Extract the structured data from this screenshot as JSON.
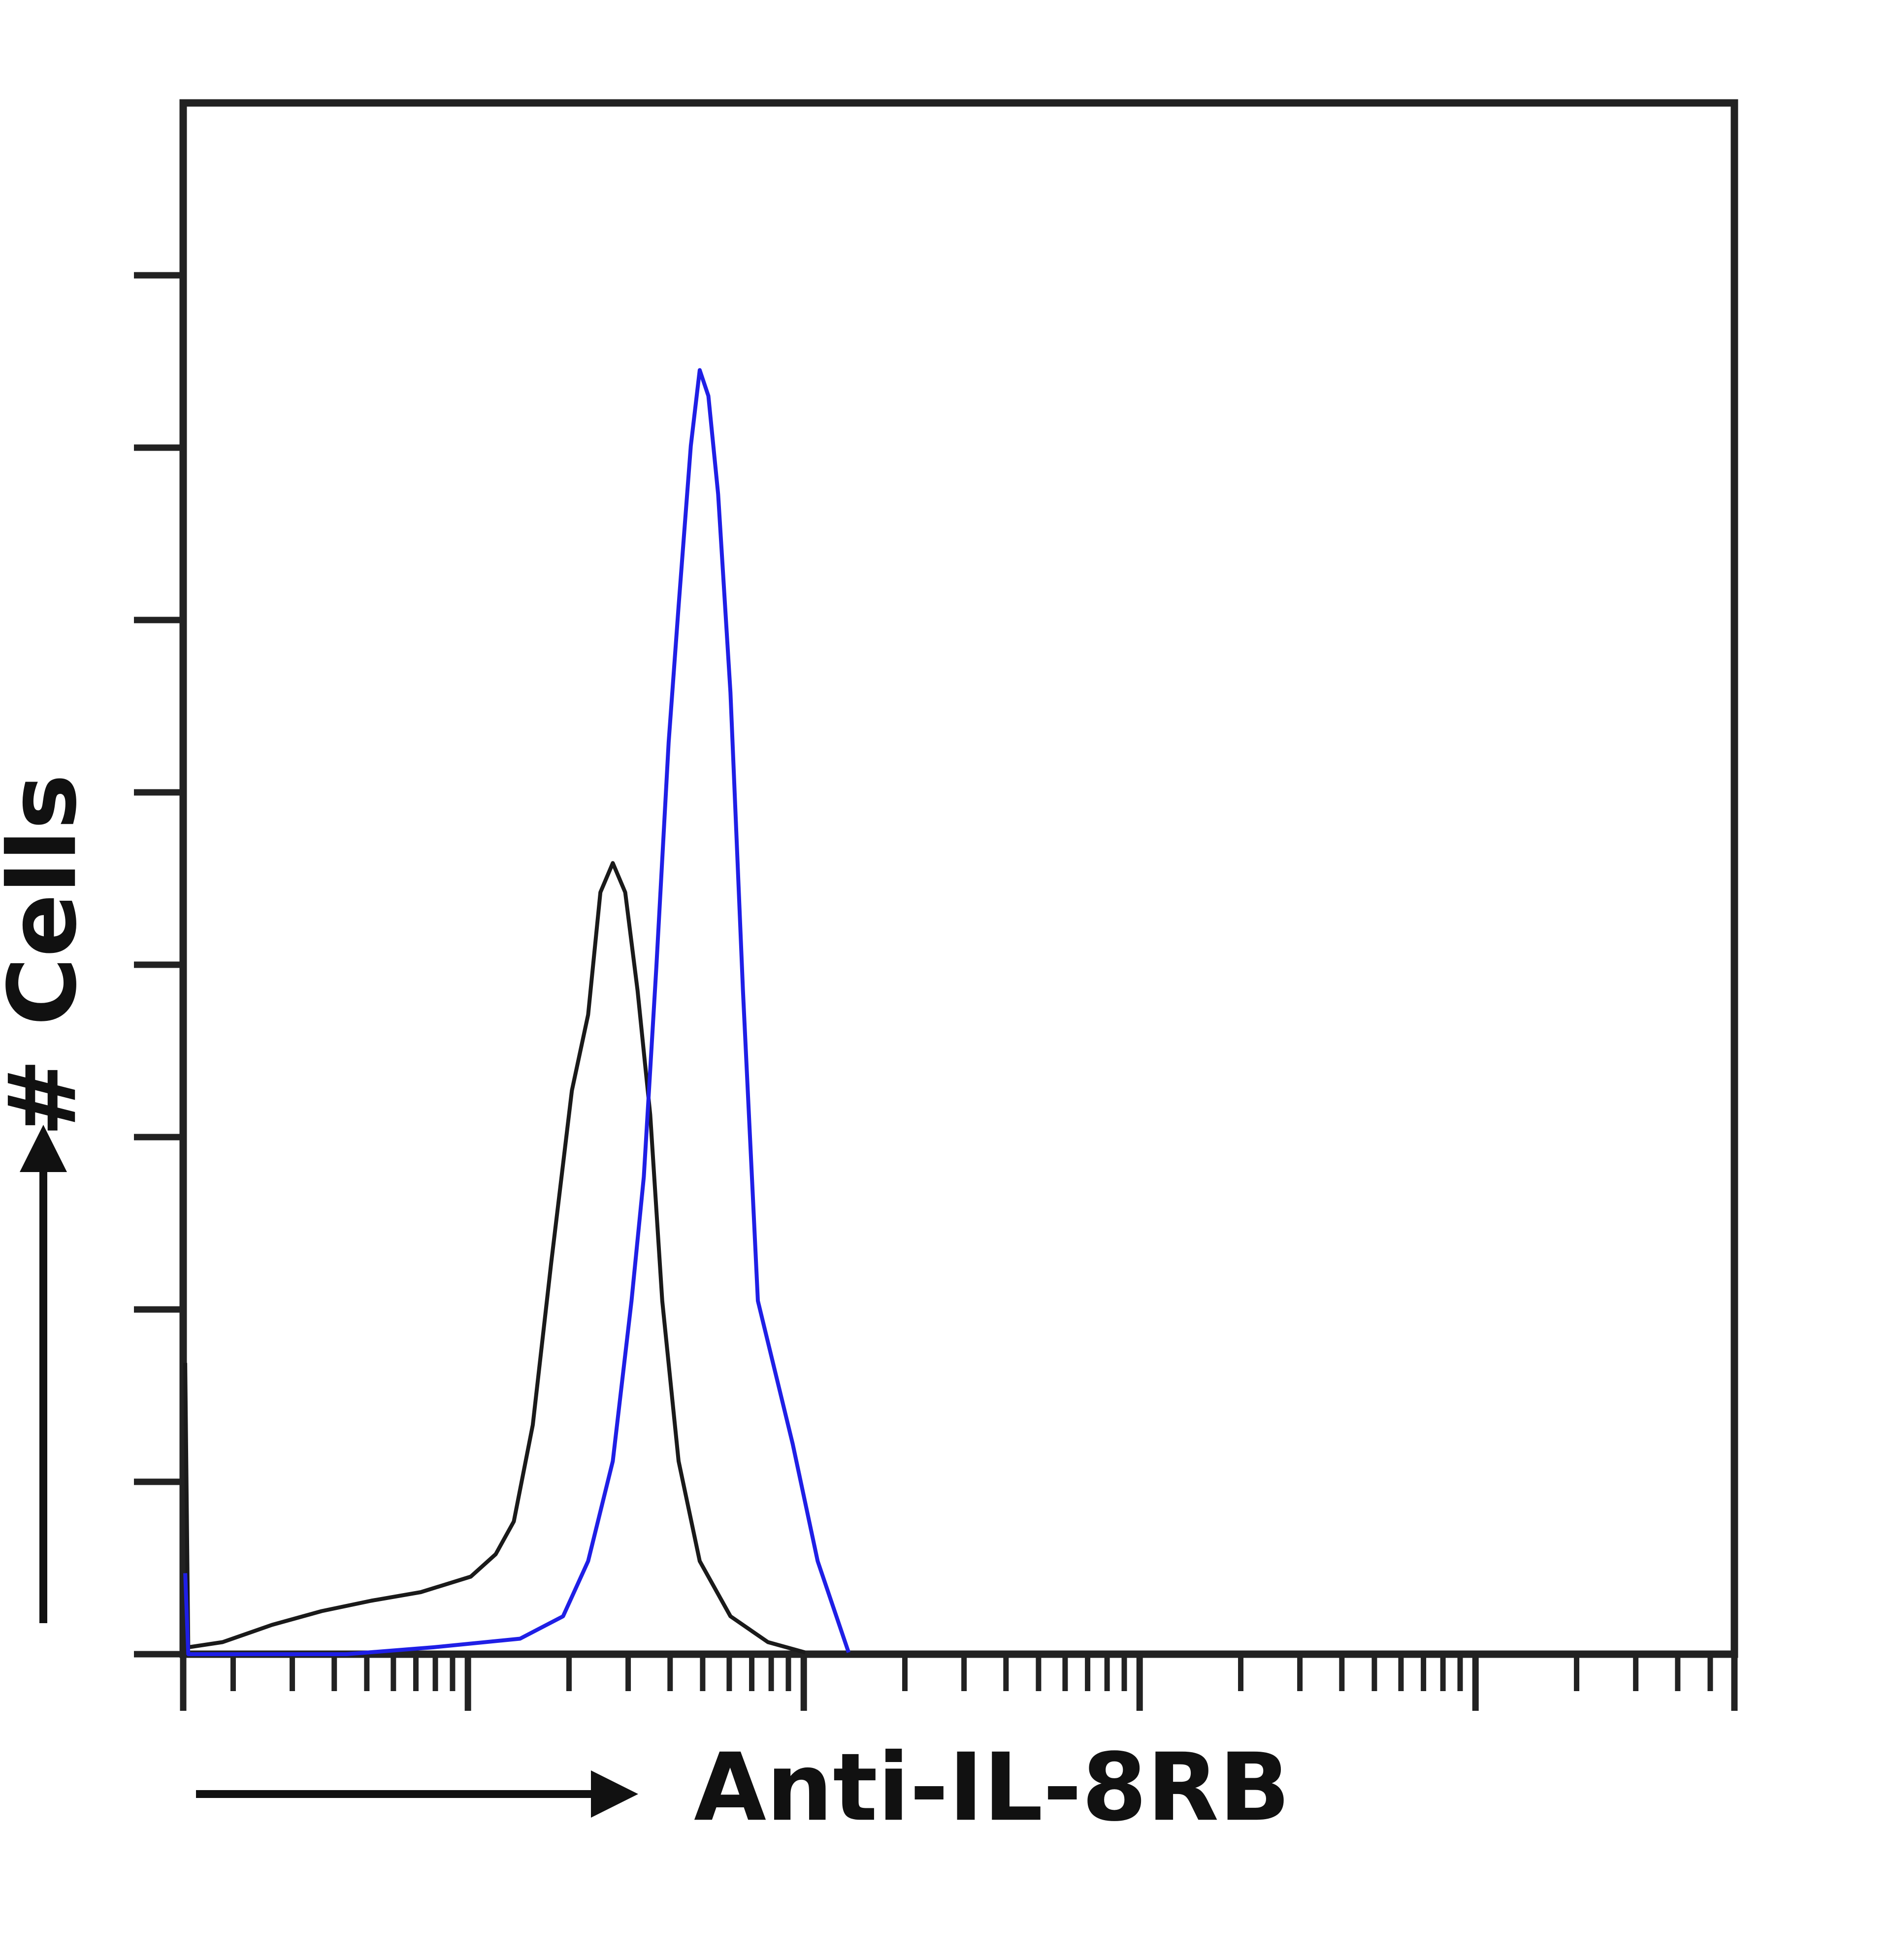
{
  "chart_data": {
    "type": "line",
    "xlabel": "Anti-IL-8RB",
    "ylabel": "# Cells",
    "log_x": true,
    "xlim": [
      1.42,
      59000
    ],
    "xticks": [
      10,
      100,
      1000,
      10000
    ],
    "ylim": [
      0,
      90
    ],
    "yticks": [
      0,
      10,
      20,
      30,
      40,
      50,
      60,
      70,
      80
    ],
    "series": [
      {
        "color": "#1a1a1a",
        "x": [
          1.44,
          1.47,
          1.86,
          2.61,
          3.67,
          5.15,
          7.24,
          10.2,
          12.1,
          13.7,
          15.6,
          17.7,
          20.4,
          22.8,
          24.8,
          27.0,
          29.4,
          32.0,
          34.9,
          37.9,
          42.4,
          49.0,
          60.5,
          78.2,
          101
        ],
        "values": [
          16.9,
          0.4,
          0.7,
          1.7,
          2.5,
          3.1,
          3.6,
          4.5,
          5.8,
          7.7,
          13.3,
          22.7,
          32.7,
          37.1,
          44.2,
          45.9,
          44.2,
          38.5,
          31.3,
          20.5,
          11.2,
          5.4,
          2.2,
          0.7,
          0.1
        ]
      },
      {
        "color": "#1f1fe6",
        "x": [
          1.44,
          1.47,
          4.35,
          7.89,
          14.3,
          19.2,
          22.8,
          27.0,
          30.7,
          33.4,
          36.4,
          39.6,
          42.4,
          46.1,
          49.0,
          52.0,
          55.6,
          60.5,
          65.9,
          73.0,
          92.7,
          110,
          136
        ],
        "values": [
          4.7,
          0,
          0,
          0.4,
          0.9,
          2.2,
          5.4,
          11.2,
          20.5,
          27.7,
          39.9,
          52.9,
          60.8,
          70.1,
          74.5,
          73.0,
          67.3,
          55.8,
          38.5,
          20.5,
          12.2,
          5.4,
          0.1
        ]
      }
    ]
  }
}
